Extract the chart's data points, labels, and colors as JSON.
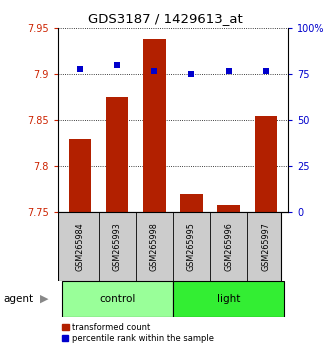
{
  "title": "GDS3187 / 1429613_at",
  "samples": [
    "GSM265984",
    "GSM265993",
    "GSM265998",
    "GSM265995",
    "GSM265996",
    "GSM265997"
  ],
  "groups": [
    "control",
    "control",
    "control",
    "light",
    "light",
    "light"
  ],
  "transformed_count": [
    7.83,
    7.875,
    7.938,
    7.77,
    7.758,
    7.855
  ],
  "percentile_rank": [
    78,
    80,
    77,
    75,
    77,
    77
  ],
  "ylim_left": [
    7.75,
    7.95
  ],
  "ylim_right": [
    0,
    100
  ],
  "yticks_left": [
    7.75,
    7.8,
    7.85,
    7.9,
    7.95
  ],
  "yticks_right": [
    0,
    25,
    50,
    75,
    100
  ],
  "ytick_labels_right": [
    "0",
    "25",
    "50",
    "75",
    "100%"
  ],
  "bar_color": "#b22000",
  "dot_color": "#0000cc",
  "group_colors_control": "#99ff99",
  "group_colors_light": "#33ee33",
  "left_tick_color": "#cc2200",
  "right_tick_color": "#0000cc",
  "sample_area_color": "#cccccc",
  "bar_width": 0.6,
  "dot_size": 4
}
